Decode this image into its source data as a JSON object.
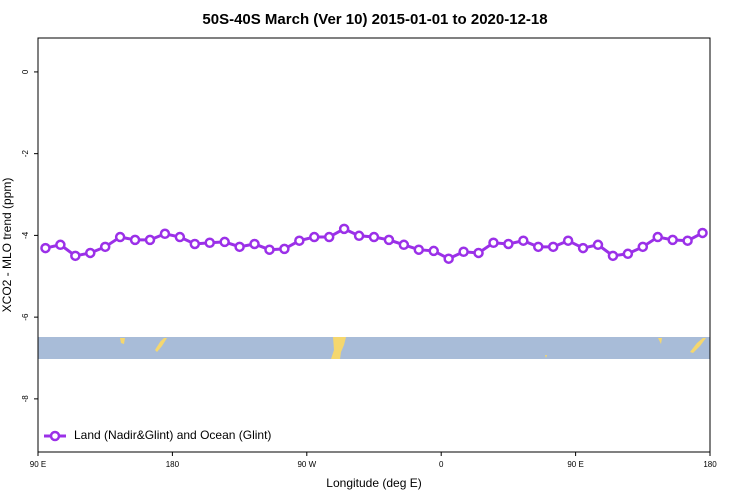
{
  "chart_data": {
    "type": "line",
    "title": "50S-40S March (Ver 10)   2015-01-01 to 2020-12-18",
    "x_label": "Longitude (deg E)",
    "y_label": "XCO2 - MLO trend (ppm)",
    "xlim": [
      90,
      540
    ],
    "xticks": [
      {
        "value": 90,
        "label": "90 E"
      },
      {
        "value": 180,
        "label": "180"
      },
      {
        "value": 270,
        "label": "90 W"
      },
      {
        "value": 360,
        "label": "0"
      },
      {
        "value": 450,
        "label": "90 E"
      },
      {
        "value": 540,
        "label": "180"
      }
    ],
    "ylim": [
      -9.3,
      0.83
    ],
    "yticks": [
      0,
      -2,
      -4,
      -6,
      -8
    ],
    "legend": "bottom-left",
    "series": [
      {
        "name": "Land (Nadir&Glint) and Ocean (Glint)",
        "color": "#9b30e8",
        "x": [
          95,
          105,
          115,
          125,
          135,
          145,
          155,
          165,
          175,
          185,
          195,
          205,
          215,
          225,
          235,
          245,
          255,
          265,
          275,
          285,
          295,
          305,
          315,
          325,
          335,
          345,
          355,
          365,
          375,
          385,
          395,
          405,
          415,
          425,
          435,
          445,
          455,
          465,
          475,
          485,
          495,
          505,
          515,
          525,
          535
        ],
        "values": [
          -4.31,
          -4.23,
          -4.5,
          -4.43,
          -4.28,
          -4.04,
          -4.11,
          -4.11,
          -3.96,
          -4.04,
          -4.21,
          -4.18,
          -4.16,
          -4.28,
          -4.21,
          -4.35,
          -4.33,
          -4.13,
          -4.04,
          -4.04,
          -3.84,
          -4.01,
          -4.04,
          -4.11,
          -4.23,
          -4.35,
          -4.38,
          -4.57,
          -4.4,
          -4.43,
          -4.18,
          -4.21,
          -4.13,
          -4.28,
          -4.28,
          -4.13,
          -4.31,
          -4.23,
          -4.5,
          -4.45,
          -4.28,
          -4.04,
          -4.11,
          -4.13,
          -3.94
        ]
      }
    ]
  }
}
